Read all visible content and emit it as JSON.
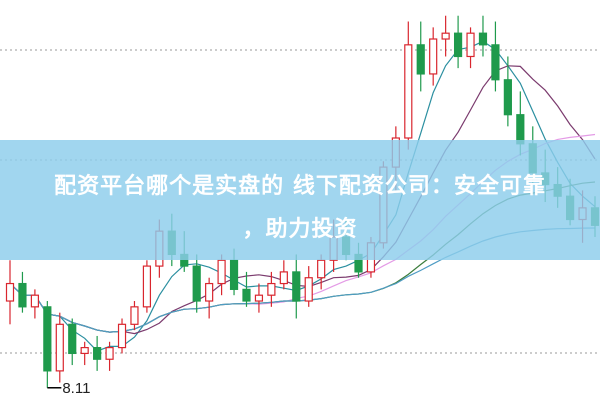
{
  "title_line1": "配资平台哪个是实盘的 线下配资公司：安全可靠",
  "title_line2": "，助力投资",
  "chart_data": {
    "type": "candlestick",
    "annotation": {
      "label": "8.11",
      "candle_index": 3
    },
    "ylim": [
      7.9,
      14.77
    ],
    "grid": "dotted horizontal",
    "colors": {
      "up": "#d9262e",
      "down": "#1f9a4c",
      "ma5": "#2b8fa0",
      "ma10": "#7b3b6e",
      "ma20": "#e49be6",
      "ma30": "#3c7d3c",
      "ma60": "#4f9cc4",
      "banner": "#8ccdeb"
    },
    "moving_averages": [
      5,
      10,
      20,
      30,
      60
    ],
    "candles": [
      [
        9.6,
        10.3,
        9.2,
        9.9
      ],
      [
        9.9,
        10.1,
        9.4,
        9.5
      ],
      [
        9.5,
        9.8,
        9.3,
        9.7
      ],
      [
        9.5,
        9.6,
        8.11,
        8.4
      ],
      [
        8.4,
        9.4,
        8.2,
        9.2
      ],
      [
        9.2,
        9.3,
        8.5,
        8.7
      ],
      [
        8.7,
        8.9,
        8.5,
        8.8
      ],
      [
        8.8,
        9.0,
        8.4,
        8.6
      ],
      [
        8.6,
        8.9,
        8.4,
        8.8
      ],
      [
        8.8,
        9.3,
        8.7,
        9.2
      ],
      [
        9.2,
        9.6,
        9.1,
        9.5
      ],
      [
        9.5,
        10.3,
        9.4,
        10.2
      ],
      [
        10.2,
        11.0,
        10.0,
        10.8
      ],
      [
        10.8,
        11.1,
        10.2,
        10.4
      ],
      [
        10.4,
        10.8,
        10.1,
        10.2
      ],
      [
        10.2,
        10.4,
        9.4,
        9.6
      ],
      [
        9.6,
        10.0,
        9.3,
        9.9
      ],
      [
        9.9,
        10.4,
        9.7,
        10.3
      ],
      [
        10.3,
        10.5,
        9.7,
        9.8
      ],
      [
        9.8,
        10.1,
        9.5,
        9.6
      ],
      [
        9.6,
        9.9,
        9.4,
        9.7
      ],
      [
        9.7,
        10.1,
        9.5,
        9.9
      ],
      [
        9.9,
        10.3,
        9.8,
        10.1
      ],
      [
        10.1,
        10.4,
        9.3,
        9.6
      ],
      [
        9.6,
        10.2,
        9.5,
        10.0
      ],
      [
        10.0,
        10.4,
        9.8,
        10.3
      ],
      [
        10.3,
        11.0,
        10.1,
        10.7
      ],
      [
        10.7,
        11.0,
        10.3,
        10.4
      ],
      [
        10.4,
        10.6,
        10.0,
        10.1
      ],
      [
        10.1,
        10.7,
        10.0,
        10.6
      ],
      [
        10.6,
        12.0,
        10.5,
        11.9
      ],
      [
        11.9,
        12.6,
        11.5,
        12.4
      ],
      [
        12.4,
        14.4,
        12.2,
        14.0
      ],
      [
        14.0,
        14.4,
        13.2,
        13.5
      ],
      [
        13.5,
        14.3,
        13.3,
        14.1
      ],
      [
        14.1,
        14.5,
        13.8,
        14.2
      ],
      [
        14.2,
        14.5,
        13.6,
        13.8
      ],
      [
        13.8,
        14.3,
        13.6,
        14.2
      ],
      [
        14.2,
        14.5,
        13.8,
        14.0
      ],
      [
        14.0,
        14.4,
        13.2,
        13.4
      ],
      [
        13.4,
        13.8,
        12.6,
        12.8
      ],
      [
        12.8,
        13.2,
        12.1,
        12.3
      ],
      [
        12.3,
        12.6,
        11.6,
        11.8
      ],
      [
        11.8,
        12.2,
        11.3,
        11.6
      ],
      [
        11.6,
        11.9,
        11.2,
        11.4
      ],
      [
        11.4,
        11.7,
        10.9,
        11.0
      ],
      [
        11.0,
        11.5,
        10.6,
        11.2
      ],
      [
        11.2,
        11.4,
        10.7,
        10.9
      ]
    ]
  }
}
